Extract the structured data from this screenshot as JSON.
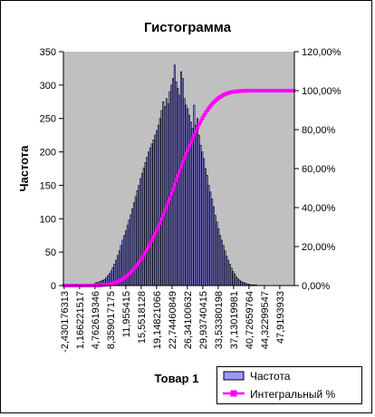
{
  "chart_data": {
    "type": "bar",
    "title": "Гистограмма",
    "xlabel": "Товар 1",
    "ylabel": "Частота",
    "y2label": "",
    "ylim": [
      0,
      350
    ],
    "y_ticks": [
      0,
      50,
      100,
      150,
      200,
      250,
      300,
      350
    ],
    "y2lim": [
      0,
      1.2
    ],
    "y2_ticks": [
      "0,00%",
      "20,00%",
      "40,00%",
      "60,00%",
      "80,00%",
      "100,00%",
      "120,00%"
    ],
    "x_tick_labels": [
      "-2,430176313",
      "1,166221517",
      "4,762619346",
      "8,359017175",
      "11,955415",
      "15,5518128",
      "19,14821066",
      "22,74460849",
      "26,34100632",
      "29,93740415",
      "33,53380198",
      "37,13019981",
      "40,72659764",
      "44,32299547",
      "47,9193933"
    ],
    "grid": false,
    "legend_position": "bottom-right",
    "series": [
      {
        "name": "Частота",
        "kind": "bar",
        "color": "#9999ff",
        "values": [
          0,
          0,
          0,
          0,
          0,
          0,
          0,
          0,
          0,
          0,
          0,
          0,
          0,
          0,
          0,
          0,
          1,
          1,
          2,
          3,
          5,
          4,
          6,
          7,
          8,
          9,
          12,
          15,
          18,
          22,
          27,
          32,
          38,
          45,
          52,
          60,
          68,
          75,
          82,
          90,
          98,
          106,
          115,
          124,
          133,
          142,
          150,
          160,
          168,
          176,
          184,
          192,
          200,
          206,
          212,
          218,
          225,
          232,
          240,
          250,
          262,
          275,
          268,
          280,
          272,
          290,
          300,
          310,
          330,
          305,
          295,
          285,
          320,
          310,
          280,
          270,
          265,
          255,
          245,
          235,
          270,
          240,
          250,
          225,
          210,
          200,
          190,
          175,
          165,
          150,
          140,
          130,
          118,
          105,
          95,
          85,
          75,
          68,
          60,
          52,
          44,
          38,
          32,
          26,
          21,
          17,
          13,
          10,
          8,
          6,
          5,
          4,
          3,
          2,
          2,
          1,
          1,
          1,
          1,
          0,
          0,
          0,
          0,
          0,
          0,
          0,
          0,
          0,
          0,
          0,
          0,
          0,
          0,
          0,
          0,
          0,
          0,
          0,
          0,
          0,
          0,
          0
        ]
      },
      {
        "name": "Интегральный %",
        "kind": "line",
        "color": "#ff00ff",
        "marker": "square"
      }
    ]
  }
}
